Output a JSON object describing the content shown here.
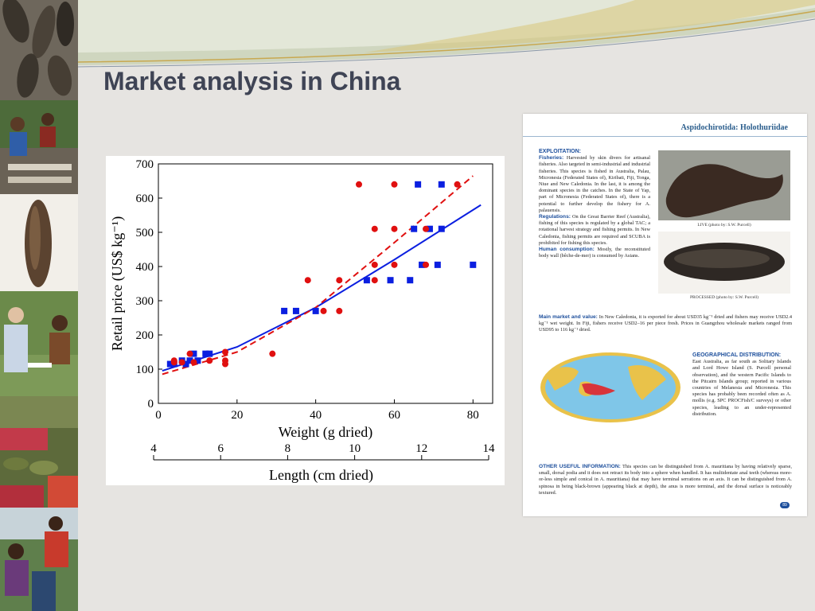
{
  "slide": {
    "title": "Market analysis in China"
  },
  "colors": {
    "title": "#3f4455",
    "series_square": "#0b1fe0",
    "series_circle": "#e01010",
    "accent_blue": "#1d4f9c"
  },
  "sidebar": {
    "photos": [
      "sea-cucumbers-on-rack-photo",
      "people-processing-photo",
      "single-dried-sea-cucumber-photo",
      "field-interview-photo",
      "market-baskets-photo",
      "fishers-meeting-photo"
    ]
  },
  "chart_data": {
    "type": "scatter",
    "xlabel": "Weight (g dried)",
    "ylabel": "Retail price (US$ kg⁻¹)",
    "x2label": "Length (cm dried)",
    "xlim": [
      0,
      85
    ],
    "ylim": [
      0,
      700
    ],
    "x2lim": [
      4,
      14
    ],
    "xticks": [
      "0",
      "20",
      "40",
      "60",
      "80"
    ],
    "yticks": [
      "0",
      "100",
      "200",
      "300",
      "400",
      "500",
      "600",
      "700"
    ],
    "x2ticks": [
      "4",
      "6",
      "8",
      "10",
      "12",
      "14"
    ],
    "series": [
      {
        "marker": "square",
        "color": "#0b1fe0",
        "points": [
          [
            3,
            115
          ],
          [
            4,
            115
          ],
          [
            6,
            125
          ],
          [
            7,
            115
          ],
          [
            8,
            125
          ],
          [
            9,
            145
          ],
          [
            10,
            125
          ],
          [
            12,
            145
          ],
          [
            13,
            145
          ],
          [
            32,
            270
          ],
          [
            35,
            270
          ],
          [
            40,
            270
          ],
          [
            53,
            360
          ],
          [
            59,
            360
          ],
          [
            64,
            360
          ],
          [
            65,
            510
          ],
          [
            66,
            640
          ],
          [
            67,
            405
          ],
          [
            69,
            510
          ],
          [
            71,
            405
          ],
          [
            72,
            640
          ],
          [
            72,
            510
          ],
          [
            80,
            405
          ]
        ]
      },
      {
        "marker": "circle",
        "color": "#e01010",
        "points": [
          [
            4,
            125
          ],
          [
            4,
            120
          ],
          [
            6,
            120
          ],
          [
            8,
            145
          ],
          [
            9,
            120
          ],
          [
            13,
            125
          ],
          [
            17,
            150
          ],
          [
            17,
            125
          ],
          [
            17,
            115
          ],
          [
            29,
            145
          ],
          [
            38,
            360
          ],
          [
            42,
            270
          ],
          [
            46,
            360
          ],
          [
            46,
            270
          ],
          [
            51,
            640
          ],
          [
            55,
            510
          ],
          [
            55,
            405
          ],
          [
            55,
            360
          ],
          [
            60,
            640
          ],
          [
            60,
            510
          ],
          [
            60,
            405
          ],
          [
            68,
            510
          ],
          [
            68,
            405
          ],
          [
            76,
            640
          ]
        ]
      }
    ],
    "fits": [
      {
        "style": "solid",
        "color": "#0b1fe0",
        "points": [
          [
            1,
            95
          ],
          [
            20,
            165
          ],
          [
            40,
            280
          ],
          [
            60,
            420
          ],
          [
            82,
            580
          ]
        ]
      },
      {
        "style": "dashed",
        "color": "#e01010",
        "points": [
          [
            1,
            85
          ],
          [
            20,
            150
          ],
          [
            40,
            280
          ],
          [
            60,
            470
          ],
          [
            80,
            665
          ]
        ]
      }
    ]
  },
  "document": {
    "header": "Aspidochirotida: Holothuriidae",
    "exploitation_heading": "EXPLOITATION:",
    "fisheries_label": "Fisheries:",
    "fisheries_text": "Harvested by skin divers for artisanal fisheries. Also targeted in semi-industrial and industrial fisheries. This species is fished in Australia, Palau, Micronesia (Federated States of), Kiribati, Fiji, Tonga, Niue and New Caledonia. In the last, it is among the dominant species in the catches. In the State of Yap, part of Micronesia (Federated States of), there is a potential to further develop the fishery for A. palauensis.",
    "regulations_label": "Regulations:",
    "regulations_text": "On the Great Barrier Reef (Australia), fishing of this species is regulated by a global TAC; a rotational harvest strategy and fishing permits. In New Caledonia, fishing permits are required and SCUBA is prohibited for fishing this species.",
    "human_label": "Human consumption:",
    "human_text": "Mostly, the reconstituted body wall (bêche-de-mer) is consumed by Asians.",
    "market_label": "Main market and value:",
    "market_text": "In New Caledonia, it is exported for about USD35 kg⁻¹ dried and fishers may receive USD2.4 kg⁻¹ wet weight. In Fiji, fishers receive USD2–16 per piece fresh. Prices in Guangzhou wholesale markets ranged from USD95 to 116 kg⁻¹ dried.",
    "live_caption": "LIVE (photo by: S.W. Purcell)",
    "processed_caption": "PROCESSED (photo by: S.W. Purcell)",
    "geo_heading": "GEOGRAPHICAL DISTRIBUTION:",
    "geo_text": "East Australia, as far south as Solitary Islands and Lord Howe Island (S. Purcell personal observation), and the western Pacific Islands to the Pitcairn Islands group; reported in various countries of Melanesia and Micronesia. This species has probably been recorded often as A. mollis (e.g. SPC PROCFish/C surveys) or other species, leading to an under-represented distribution.",
    "other_heading": "OTHER USEFUL INFORMATION:",
    "other_text": "This species can be distinguished from A. mauritiana by having relatively sparse, small, dorsal podia and it does not retract its body into a sphere when handled. It has multidentate anal teeth (whereas more-or-less simple and conical in A. mauritiana) that may have terminal serrations on an axis. It can be distinguished from A. spinosa in being black-brown (appearing black at depth), the anus is more terminal, and the dorsal surface is noticeably textured.",
    "page_number": "89"
  }
}
